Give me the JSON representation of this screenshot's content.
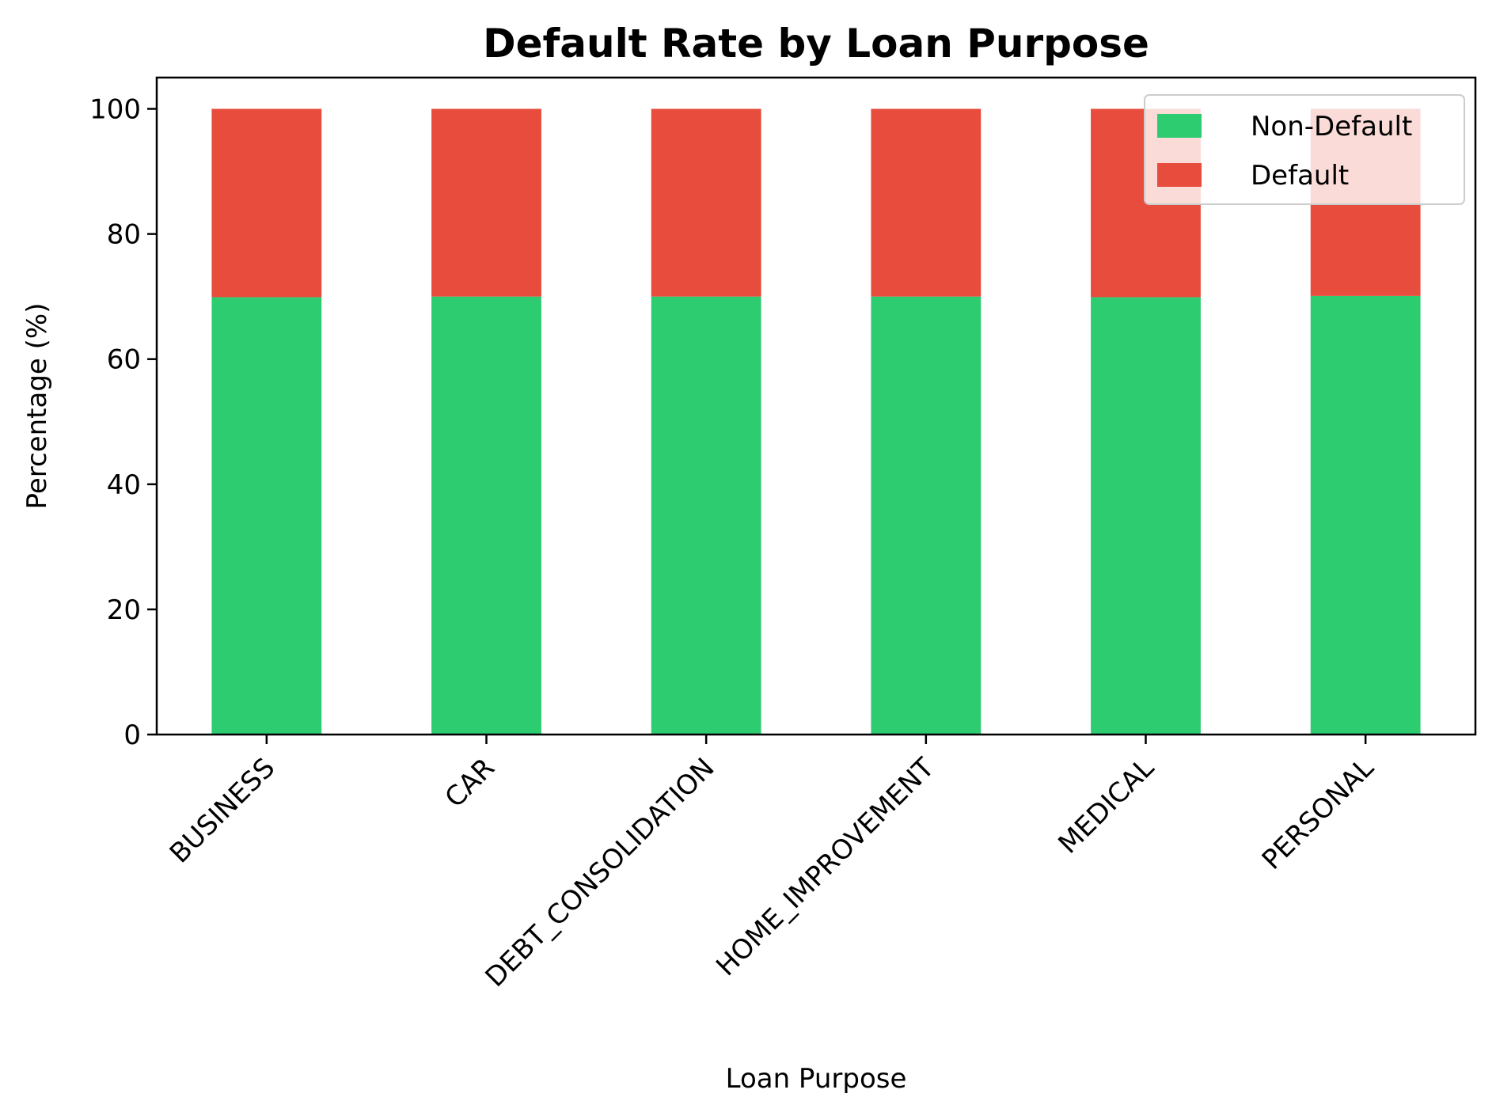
{
  "chart_data": {
    "type": "bar",
    "stacked": true,
    "title": "Default Rate by Loan Purpose",
    "xlabel": "Loan Purpose",
    "ylabel": "Percentage (%)",
    "ylim": [
      0,
      105
    ],
    "yticks": [
      0,
      20,
      40,
      60,
      80,
      100
    ],
    "grid": false,
    "legend_position": "top-right",
    "categories": [
      "BUSINESS",
      "CAR",
      "DEBT_CONSOLIDATION",
      "HOME_IMPROVEMENT",
      "MEDICAL",
      "PERSONAL"
    ],
    "series": [
      {
        "name": "Non-Default",
        "color": "#2ecc71",
        "values": [
          69.9,
          70.0,
          70.0,
          70.0,
          69.9,
          70.1
        ]
      },
      {
        "name": "Default",
        "color": "#e74c3c",
        "values": [
          30.1,
          30.0,
          30.0,
          30.0,
          30.1,
          29.9
        ]
      }
    ]
  }
}
